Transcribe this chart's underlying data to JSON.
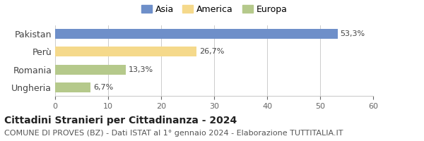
{
  "categories": [
    "Pakistan",
    "Perù",
    "Romania",
    "Ungheria"
  ],
  "values": [
    53.3,
    26.7,
    13.3,
    6.7
  ],
  "labels": [
    "53,3%",
    "26,7%",
    "13,3%",
    "6,7%"
  ],
  "colors": [
    "#6e8fc9",
    "#f5d98b",
    "#b5c98b",
    "#b5c98b"
  ],
  "legend": [
    {
      "label": "Asia",
      "color": "#6e8fc9"
    },
    {
      "label": "America",
      "color": "#f5d98b"
    },
    {
      "label": "Europa",
      "color": "#b5c98b"
    }
  ],
  "xlim": [
    0,
    60
  ],
  "xticks": [
    0,
    10,
    20,
    30,
    40,
    50,
    60
  ],
  "title": "Cittadini Stranieri per Cittadinanza - 2024",
  "subtitle": "COMUNE DI PROVES (BZ) - Dati ISTAT al 1° gennaio 2024 - Elaborazione TUTTITALIA.IT",
  "title_fontsize": 10,
  "subtitle_fontsize": 8,
  "bar_height": 0.55,
  "background_color": "#ffffff",
  "grid_color": "#cccccc",
  "label_fontsize": 8,
  "tick_fontsize": 8,
  "ytick_fontsize": 9
}
